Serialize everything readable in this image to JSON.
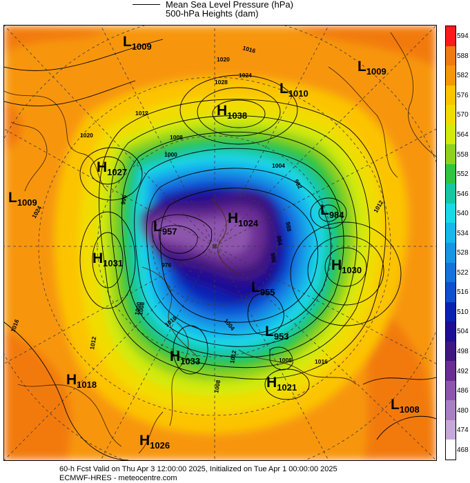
{
  "legend": {
    "mslp_label": "Mean Sea Level Pressure (hPa)",
    "heights_label": "500-hPa Heights (dam)"
  },
  "colorbar": {
    "levels": [
      "594",
      "588",
      "582",
      "576",
      "570",
      "564",
      "558",
      "552",
      "546",
      "540",
      "534",
      "528",
      "522",
      "516",
      "510",
      "504",
      "498",
      "492",
      "486",
      "480",
      "474",
      "468"
    ],
    "colors": [
      "#ff1a1a",
      "#f27a0f",
      "#f7960a",
      "#fcc400",
      "#f2dc00",
      "#d2ea10",
      "#8ed21c",
      "#2ec540",
      "#16c7a3",
      "#1ad8e6",
      "#14b8ec",
      "#1396e6",
      "#1272de",
      "#0f4fd2",
      "#0a22b4",
      "#1e0d96",
      "#3f1682",
      "#6a2d94",
      "#8e55ad",
      "#aa80c4",
      "#c6a8da",
      "#ffffff"
    ]
  },
  "map": {
    "centers": [
      {
        "type": "L",
        "value": "1009"
      },
      {
        "type": "L",
        "value": "1009"
      },
      {
        "type": "L",
        "value": "1010"
      },
      {
        "type": "H",
        "value": "1038"
      },
      {
        "type": "H",
        "value": "1027"
      },
      {
        "type": "L",
        "value": "1009"
      },
      {
        "type": "L",
        "value": "957"
      },
      {
        "type": "H",
        "value": "1024"
      },
      {
        "type": "L",
        "value": "984"
      },
      {
        "type": "H",
        "value": "1031"
      },
      {
        "type": "H",
        "value": "1030"
      },
      {
        "type": "L",
        "value": "955"
      },
      {
        "type": "L",
        "value": "953"
      },
      {
        "type": "H",
        "value": "1033"
      },
      {
        "type": "H",
        "value": "1018"
      },
      {
        "type": "H",
        "value": "1021"
      },
      {
        "type": "L",
        "value": "1008"
      },
      {
        "type": "H",
        "value": "1026"
      }
    ],
    "isobar_labels": [
      "1016",
      "1020",
      "1024",
      "1028",
      "1012",
      "1008",
      "1020",
      "1024",
      "1016",
      "1012",
      "1008",
      "1004",
      "1000",
      "996",
      "992",
      "988",
      "984",
      "980",
      "976",
      "1016",
      "1012",
      "1008",
      "1004",
      "1000",
      "1016",
      "1012",
      "1008"
    ]
  },
  "footer": {
    "line1": "60-h Fcst Valid on Thu Apr  3 12:00:00 2025, Initialized on Tue Apr  1 00:00:00 2025",
    "line2": "ECMWF-HRES  - meteocentre.com"
  }
}
